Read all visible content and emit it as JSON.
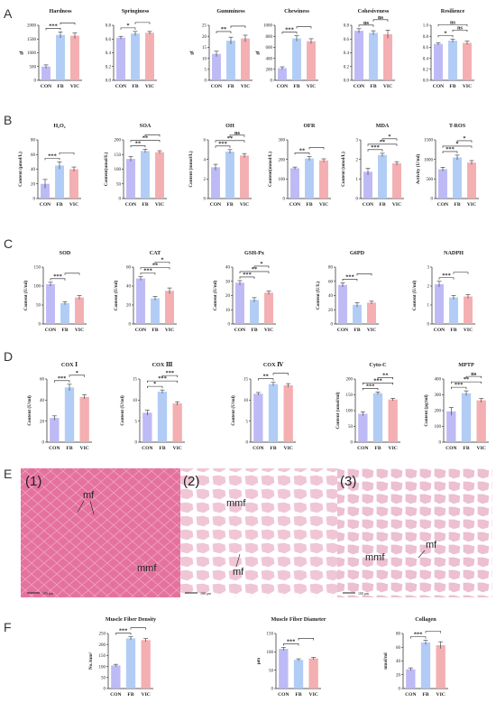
{
  "panel_labels": [
    "A",
    "B",
    "C",
    "D",
    "E",
    "F"
  ],
  "group_colors": [
    "#b6b3f4",
    "#a9c8f4",
    "#f2a6a8"
  ],
  "histology": {
    "panels": [
      "(1)",
      "(2)",
      "(3)"
    ],
    "annotations": [
      "mf",
      "mmf",
      "mmf",
      "mf",
      "mmf",
      "mf"
    ],
    "scale_bars": [
      "100 μm",
      "100 μm",
      "100 μm"
    ],
    "tissue_colors": [
      "#e5729e",
      "#f4dde6",
      "#f0cede"
    ]
  },
  "chart_data": [
    {
      "type": "bar",
      "title": "Hardness",
      "ylabel": "gf",
      "categories": [
        "CON",
        "FB",
        "VIC"
      ],
      "values": [
        500,
        1650,
        1620
      ],
      "errors": [
        60,
        110,
        100
      ],
      "yticks": [
        "0",
        "500",
        "1000",
        "1500",
        "2000"
      ],
      "ylim": [
        0,
        2000
      ],
      "sig": [
        {
          "from": 0,
          "to": 1,
          "label": "***"
        },
        {
          "from": 1,
          "to": 2,
          "label": ""
        }
      ]
    },
    {
      "type": "bar",
      "title": "Springiness",
      "ylabel": "",
      "categories": [
        "CON",
        "FB",
        "VIC"
      ],
      "values": [
        0.62,
        0.68,
        0.69
      ],
      "errors": [
        0.02,
        0.03,
        0.02
      ],
      "yticks": [
        "0.0",
        "0.2",
        "0.4",
        "0.6",
        "0.8"
      ],
      "ylim": [
        0,
        0.8
      ],
      "sig": [
        {
          "from": 0,
          "to": 1,
          "label": "*"
        },
        {
          "from": 1,
          "to": 2,
          "label": ""
        }
      ]
    },
    {
      "type": "bar",
      "title": "Gumminess",
      "ylabel": "gf",
      "categories": [
        "CON",
        "FB",
        "VIC"
      ],
      "values": [
        12,
        18,
        19
      ],
      "errors": [
        1.2,
        1.6,
        1.5
      ],
      "yticks": [
        "0",
        "5",
        "10",
        "15",
        "20",
        "25"
      ],
      "ylim": [
        0,
        25
      ],
      "sig": [
        {
          "from": 0,
          "to": 1,
          "label": "**"
        },
        {
          "from": 1,
          "to": 2,
          "label": ""
        }
      ]
    },
    {
      "type": "bar",
      "title": "Chewiness",
      "ylabel": "gf",
      "categories": [
        "CON",
        "FB",
        "VIC"
      ],
      "values": [
        220,
        760,
        710
      ],
      "errors": [
        25,
        50,
        45
      ],
      "yticks": [
        "0",
        "200",
        "400",
        "600",
        "800",
        "1000"
      ],
      "ylim": [
        0,
        1000
      ],
      "sig": [
        {
          "from": 0,
          "to": 1,
          "label": "***"
        },
        {
          "from": 1,
          "to": 2,
          "label": ""
        }
      ]
    },
    {
      "type": "bar",
      "title": "Cohesiveness",
      "ylabel": "",
      "categories": [
        "CON",
        "FB",
        "VIC"
      ],
      "values": [
        0.72,
        0.69,
        0.67
      ],
      "errors": [
        0.03,
        0.03,
        0.06
      ],
      "yticks": [
        "0.0",
        "0.2",
        "0.4",
        "0.6",
        "0.8"
      ],
      "ylim": [
        0,
        0.8
      ],
      "sig": [
        {
          "from": 0,
          "to": 1,
          "label": "ns"
        },
        {
          "from": 1,
          "to": 2,
          "label": "ns"
        }
      ]
    },
    {
      "type": "bar",
      "title": "Resilience",
      "ylabel": "",
      "categories": [
        "CON",
        "FB",
        "VIC"
      ],
      "values": [
        0.66,
        0.72,
        0.68
      ],
      "errors": [
        0.02,
        0.03,
        0.03
      ],
      "yticks": [
        "0.0",
        "0.2",
        "0.4",
        "0.6",
        "0.8",
        "1.0"
      ],
      "ylim": [
        0,
        1
      ],
      "sig": [
        {
          "from": 0,
          "to": 1,
          "label": "*"
        },
        {
          "from": 1,
          "to": 2,
          "label": "ns"
        },
        {
          "from": 0,
          "to": 2,
          "label": "ns"
        }
      ]
    },
    {
      "type": "bar",
      "title": "H₂O₂",
      "ylabel": "Content (μmol/L)",
      "categories": [
        "CON",
        "FB",
        "VIC"
      ],
      "values": [
        20,
        45,
        40
      ],
      "errors": [
        6,
        5,
        3
      ],
      "yticks": [
        "0",
        "20",
        "40",
        "60",
        "80"
      ],
      "ylim": [
        0,
        80
      ],
      "sig": [
        {
          "from": 0,
          "to": 1,
          "label": "***"
        },
        {
          "from": 1,
          "to": 2,
          "label": ""
        }
      ]
    },
    {
      "type": "bar",
      "title": "SOA",
      "ylabel": "Content(umol/L)",
      "categories": [
        "CON",
        "FB",
        "VIC"
      ],
      "values": [
        135,
        162,
        158
      ],
      "errors": [
        8,
        6,
        5
      ],
      "yticks": [
        "0",
        "50",
        "100",
        "150",
        "200"
      ],
      "ylim": [
        0,
        200
      ],
      "sig": [
        {
          "from": 0,
          "to": 1,
          "label": "**"
        },
        {
          "from": 0,
          "to": 2,
          "label": "**"
        },
        {
          "from": 1,
          "to": 2,
          "label": ""
        }
      ]
    },
    {
      "type": "bar",
      "title": "OH",
      "ylabel": "Content (mmol/L)",
      "categories": [
        "CON",
        "FB",
        "VIC"
      ],
      "values": [
        3.2,
        4.8,
        4.4
      ],
      "errors": [
        0.3,
        0.2,
        0.2
      ],
      "yticks": [
        "0",
        "2",
        "4",
        "6"
      ],
      "ylim": [
        0,
        6
      ],
      "sig": [
        {
          "from": 0,
          "to": 1,
          "label": "***"
        },
        {
          "from": 0,
          "to": 2,
          "label": "**"
        },
        {
          "from": 1,
          "to": 2,
          "label": "ns"
        }
      ]
    },
    {
      "type": "bar",
      "title": "OFR",
      "ylabel": "Content(mmol/L)",
      "categories": [
        "CON",
        "FB",
        "VIC"
      ],
      "values": [
        155,
        205,
        195
      ],
      "errors": [
        6,
        10,
        8
      ],
      "yticks": [
        "0",
        "100",
        "200",
        "300"
      ],
      "ylim": [
        0,
        300
      ],
      "sig": [
        {
          "from": 0,
          "to": 1,
          "label": "**"
        },
        {
          "from": 1,
          "to": 2,
          "label": ""
        }
      ]
    },
    {
      "type": "bar",
      "title": "MDA",
      "ylabel": "Content (nmol/L)",
      "categories": [
        "CON",
        "FB",
        "VIC"
      ],
      "values": [
        1.6,
        2.6,
        2.1
      ],
      "errors": [
        0.2,
        0.1,
        0.1
      ],
      "yticks": [
        "0",
        "1",
        "2",
        "3"
      ],
      "ylim": [
        0,
        3.5
      ],
      "sig": [
        {
          "from": 0,
          "to": 1,
          "label": "***"
        },
        {
          "from": 0,
          "to": 2,
          "label": "**"
        },
        {
          "from": 1,
          "to": 2,
          "label": "*"
        }
      ]
    },
    {
      "type": "bar",
      "title": "T-ROS",
      "ylabel": "Activity (U/ml)",
      "categories": [
        "CON",
        "FB",
        "VIC"
      ],
      "values": [
        750,
        1050,
        920
      ],
      "errors": [
        50,
        60,
        50
      ],
      "yticks": [
        "0",
        "500",
        "1000",
        "1500"
      ],
      "ylim": [
        0,
        1500
      ],
      "sig": [
        {
          "from": 0,
          "to": 1,
          "label": "***"
        },
        {
          "from": 0,
          "to": 2,
          "label": "*"
        },
        {
          "from": 1,
          "to": 2,
          "label": "*"
        }
      ]
    },
    {
      "type": "bar",
      "title": "SOD",
      "ylabel": "Content (U/ml)",
      "categories": [
        "CON",
        "FB",
        "VIC"
      ],
      "values": [
        105,
        55,
        70
      ],
      "errors": [
        5,
        4,
        5
      ],
      "yticks": [
        "0",
        "50",
        "100",
        "150"
      ],
      "ylim": [
        0,
        150
      ],
      "sig": [
        {
          "from": 0,
          "to": 1,
          "label": "***"
        },
        {
          "from": 1,
          "to": 2,
          "label": ""
        }
      ]
    },
    {
      "type": "bar",
      "title": "CAT",
      "ylabel": "Content (U/ml)",
      "categories": [
        "CON",
        "FB",
        "VIC"
      ],
      "values": [
        48,
        27,
        35
      ],
      "errors": [
        2,
        2,
        3
      ],
      "yticks": [
        "0",
        "20",
        "40",
        "60"
      ],
      "ylim": [
        0,
        60
      ],
      "sig": [
        {
          "from": 0,
          "to": 1,
          "label": "***"
        },
        {
          "from": 0,
          "to": 2,
          "label": "**"
        },
        {
          "from": 1,
          "to": 2,
          "label": "*"
        }
      ]
    },
    {
      "type": "bar",
      "title": "GSH-Px",
      "ylabel": "Content (U/ml)",
      "categories": [
        "CON",
        "FB",
        "VIC"
      ],
      "values": [
        29,
        17,
        22
      ],
      "errors": [
        1.5,
        1.5,
        1.2
      ],
      "yticks": [
        "0",
        "10",
        "20",
        "30",
        "40"
      ],
      "ylim": [
        0,
        40
      ],
      "sig": [
        {
          "from": 0,
          "to": 1,
          "label": "***"
        },
        {
          "from": 0,
          "to": 2,
          "label": "**"
        },
        {
          "from": 1,
          "to": 2,
          "label": "*"
        }
      ]
    },
    {
      "type": "bar",
      "title": "G6PD",
      "ylabel": "Content (U/L)",
      "categories": [
        "CON",
        "FB",
        "VIC"
      ],
      "values": [
        55,
        27,
        30
      ],
      "errors": [
        3,
        3,
        2
      ],
      "yticks": [
        "0",
        "20",
        "40",
        "60",
        "80"
      ],
      "ylim": [
        0,
        80
      ],
      "sig": [
        {
          "from": 0,
          "to": 1,
          "label": "***"
        },
        {
          "from": 1,
          "to": 2,
          "label": ""
        }
      ]
    },
    {
      "type": "bar",
      "title": "NADPH",
      "ylabel": "Content (U/ml)",
      "categories": [
        "CON",
        "FB",
        "VIC"
      ],
      "values": [
        2.1,
        1.4,
        1.45
      ],
      "errors": [
        0.15,
        0.1,
        0.1
      ],
      "yticks": [
        "0",
        "1",
        "2",
        "3"
      ],
      "ylim": [
        0,
        3
      ],
      "sig": [
        {
          "from": 0,
          "to": 1,
          "label": "***"
        },
        {
          "from": 1,
          "to": 2,
          "label": ""
        }
      ]
    },
    {
      "type": "bar",
      "title": "COX Ⅰ",
      "ylabel": "Content (U/ml)",
      "categories": [
        "CON",
        "FB",
        "VIC"
      ],
      "values": [
        23,
        52,
        43
      ],
      "errors": [
        2,
        3,
        2
      ],
      "yticks": [
        "0",
        "20",
        "40",
        "60"
      ],
      "ylim": [
        0,
        60
      ],
      "sig": [
        {
          "from": 0,
          "to": 1,
          "label": "***"
        },
        {
          "from": 1,
          "to": 2,
          "label": "*"
        }
      ]
    },
    {
      "type": "bar",
      "title": "COX Ⅲ",
      "ylabel": "Content (U/ml)",
      "categories": [
        "CON",
        "FB",
        "VIC"
      ],
      "values": [
        7,
        12,
        9.2
      ],
      "errors": [
        0.6,
        0.4,
        0.4
      ],
      "yticks": [
        "0",
        "5",
        "10",
        "15"
      ],
      "ylim": [
        0,
        15
      ],
      "sig": [
        {
          "from": 0,
          "to": 1,
          "label": "*"
        },
        {
          "from": 0,
          "to": 2,
          "label": "***"
        },
        {
          "from": 1,
          "to": 2,
          "label": "***"
        }
      ]
    },
    {
      "type": "bar",
      "title": "COX Ⅳ",
      "ylabel": "Content (U/ml)",
      "categories": [
        "CON",
        "FB",
        "VIC"
      ],
      "values": [
        11.5,
        13.8,
        13.5
      ],
      "errors": [
        0.3,
        0.4,
        0.4
      ],
      "yticks": [
        "0",
        "5",
        "10",
        "15"
      ],
      "ylim": [
        0,
        15
      ],
      "sig": [
        {
          "from": 0,
          "to": 1,
          "label": "**"
        },
        {
          "from": 1,
          "to": 2,
          "label": ""
        }
      ]
    },
    {
      "type": "bar",
      "title": "Cyto-C",
      "ylabel": "Content (umol/ml)",
      "categories": [
        "CON",
        "FB",
        "VIC"
      ],
      "values": [
        90,
        155,
        135
      ],
      "errors": [
        6,
        4,
        4
      ],
      "yticks": [
        "0",
        "50",
        "100",
        "150",
        "200"
      ],
      "ylim": [
        0,
        200
      ],
      "sig": [
        {
          "from": 0,
          "to": 1,
          "label": "***"
        },
        {
          "from": 0,
          "to": 2,
          "label": "***"
        },
        {
          "from": 1,
          "to": 2,
          "label": "**"
        }
      ]
    },
    {
      "type": "bar",
      "title": "MPTP",
      "ylabel": "Content (pg/ml)",
      "categories": [
        "CON",
        "FB",
        "VIC"
      ],
      "values": [
        195,
        310,
        265
      ],
      "errors": [
        25,
        15,
        12
      ],
      "yticks": [
        "0",
        "100",
        "200",
        "300",
        "400"
      ],
      "ylim": [
        0,
        400
      ],
      "sig": [
        {
          "from": 0,
          "to": 1,
          "label": "***"
        },
        {
          "from": 0,
          "to": 2,
          "label": "**"
        },
        {
          "from": 1,
          "to": 2,
          "label": "ns"
        }
      ]
    },
    {
      "type": "bar",
      "title": "Muscle Fiber Density",
      "ylabel": "No./mm²",
      "categories": [
        "CON",
        "FB",
        "VIC"
      ],
      "values": [
        105,
        228,
        220
      ],
      "errors": [
        5,
        7,
        7
      ],
      "yticks": [
        "0",
        "50",
        "100",
        "150",
        "200",
        "250"
      ],
      "ylim": [
        0,
        250
      ],
      "sig": [
        {
          "from": 0,
          "to": 1,
          "label": "***"
        },
        {
          "from": 1,
          "to": 2,
          "label": ""
        }
      ]
    },
    {
      "type": "bar",
      "title": "Muscle Fiber Diameter",
      "ylabel": "μm",
      "categories": [
        "CON",
        "FB",
        "VIC"
      ],
      "values": [
        108,
        78,
        82
      ],
      "errors": [
        4,
        3,
        3
      ],
      "yticks": [
        "0",
        "50",
        "100",
        "150"
      ],
      "ylim": [
        0,
        150
      ],
      "sig": [
        {
          "from": 0,
          "to": 1,
          "label": "***"
        },
        {
          "from": 1,
          "to": 2,
          "label": ""
        }
      ]
    },
    {
      "type": "bar",
      "title": "Collagen",
      "ylabel": "nmol/ml",
      "categories": [
        "CON",
        "FB",
        "VIC"
      ],
      "values": [
        28,
        67,
        63
      ],
      "errors": [
        2,
        3,
        5
      ],
      "yticks": [
        "0",
        "20",
        "40",
        "60",
        "80"
      ],
      "ylim": [
        0,
        80
      ],
      "sig": [
        {
          "from": 0,
          "to": 1,
          "label": "***"
        },
        {
          "from": 1,
          "to": 2,
          "label": ""
        }
      ]
    }
  ]
}
